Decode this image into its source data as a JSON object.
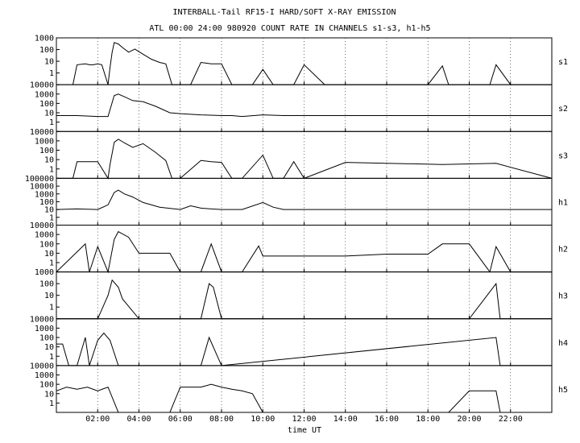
{
  "header": {
    "title": "INTERBALL-Tail RF15-I HARD/SOFT X-RAY EMISSION",
    "subtitle": "ATL 00:00 24:00 980920  COUNT RATE IN CHANNELS s1-s3, h1-h5"
  },
  "chart_data": {
    "type": "line",
    "title": "INTERBALL-Tail RF15-I HARD/SOFT X-RAY EMISSION",
    "subtitle": "ATL 00:00 24:00 980920  COUNT RATE IN CHANNELS s1-s3, h1-h5",
    "xlabel": "time UT",
    "x_unit": "hours UT",
    "xlim": [
      0,
      24
    ],
    "x_ticks": [
      2,
      4,
      6,
      8,
      10,
      12,
      14,
      16,
      18,
      20,
      22
    ],
    "x_tick_labels": [
      "02:00",
      "04:00",
      "06:00",
      "08:00",
      "10:00",
      "12:00",
      "14:00",
      "16:00",
      "18:00",
      "20:00",
      "22:00"
    ],
    "y_scale": "log",
    "grid": "vertical dotted at tick marks",
    "panels": [
      {
        "channel": "s1",
        "ylim": [
          0.1,
          1000
        ],
        "y_tick_labels": [
          "1000",
          "100",
          "10",
          "1"
        ],
        "x": [
          0.8,
          1.0,
          1.4,
          1.6,
          1.8,
          2.0,
          2.2,
          2.5,
          2.6,
          2.7,
          2.8,
          3.0,
          3.2,
          3.5,
          3.8,
          4.2,
          4.6,
          5.0,
          5.3,
          5.6,
          6.0,
          6.5,
          7.0,
          7.5,
          8.0,
          8.5,
          9.0,
          9.5,
          10.0,
          10.5,
          11.0,
          11.5,
          12.0,
          13.0,
          14.0,
          15.0,
          16.0,
          17.0,
          18.0,
          18.7,
          19.0,
          20.0,
          21.0,
          21.3,
          22.0,
          23.0,
          24.0
        ],
        "values": [
          0.1,
          5,
          6,
          5,
          5,
          6,
          5,
          0.1,
          3,
          60,
          400,
          300,
          150,
          60,
          110,
          40,
          15,
          8,
          6,
          0.1,
          0.1,
          0.1,
          8,
          6,
          6,
          0.1,
          0.1,
          0.1,
          2,
          0.1,
          0.1,
          0.1,
          5,
          0.1,
          0.1,
          0.1,
          0.1,
          0.1,
          0.1,
          4,
          0.1,
          0.1,
          0.1,
          5,
          0.1,
          0.1,
          0.1
        ]
      },
      {
        "channel": "s2",
        "ylim": [
          0.1,
          10000
        ],
        "y_tick_labels": [
          "10000",
          "1000",
          "100",
          "10",
          "1"
        ],
        "x": [
          0.0,
          1.0,
          2.0,
          2.5,
          2.8,
          3.0,
          3.3,
          3.7,
          4.2,
          4.8,
          5.5,
          6.0,
          7.0,
          8.0,
          8.5,
          9.0,
          10.0,
          11.0,
          12.0,
          14.0,
          16.0,
          18.0,
          20.0,
          22.0,
          24.0
        ],
        "values": [
          5,
          5,
          4,
          4,
          700,
          1000,
          500,
          200,
          150,
          50,
          10,
          8,
          6,
          5,
          5,
          4,
          6,
          5,
          5,
          5,
          5,
          5,
          5,
          5,
          5
        ]
      },
      {
        "channel": "s3",
        "ylim": [
          0.1,
          10000
        ],
        "y_tick_labels": [
          "10000",
          "1000",
          "100",
          "10",
          "1"
        ],
        "x": [
          0.0,
          0.8,
          1.0,
          1.5,
          2.0,
          2.5,
          2.6,
          2.8,
          3.0,
          3.3,
          3.7,
          4.2,
          4.8,
          5.3,
          5.6,
          6.0,
          7.0,
          7.5,
          8.0,
          8.5,
          9.0,
          10.0,
          10.5,
          11.0,
          11.5,
          12.0,
          14.0,
          18.7,
          21.3,
          24.0
        ],
        "values": [
          0.1,
          0.1,
          6,
          6,
          6,
          0.1,
          3,
          700,
          1500,
          600,
          200,
          500,
          60,
          8,
          0.1,
          0.1,
          8,
          6,
          5,
          0.1,
          0.1,
          30,
          0.1,
          0.1,
          6,
          0.1,
          5,
          3,
          4,
          0.1
        ]
      },
      {
        "channel": "h1",
        "ylim": [
          0.1,
          100000
        ],
        "y_tick_labels": [
          "100000",
          "10000",
          "1000",
          "100",
          "10",
          "1"
        ],
        "x": [
          0.0,
          1.0,
          2.0,
          2.5,
          2.8,
          3.0,
          3.3,
          3.7,
          4.2,
          5.0,
          6.0,
          6.5,
          7.0,
          7.5,
          8.0,
          9.0,
          10.0,
          10.5,
          11.0,
          12.0,
          14.0,
          16.0,
          18.0,
          20.0,
          22.0,
          24.0
        ],
        "values": [
          10,
          12,
          10,
          40,
          1500,
          3000,
          1000,
          400,
          80,
          20,
          10,
          30,
          15,
          12,
          10,
          10,
          80,
          20,
          10,
          10,
          10,
          10,
          10,
          10,
          10,
          10
        ]
      },
      {
        "channel": "h2",
        "ylim": [
          0.1,
          10000
        ],
        "y_tick_labels": [
          "10000",
          "1000",
          "100",
          "10",
          "1"
        ],
        "x": [
          0.0,
          1.4,
          1.6,
          2.0,
          2.5,
          2.8,
          3.0,
          3.5,
          4.0,
          5.5,
          6.0,
          7.0,
          7.5,
          8.0,
          9.0,
          9.8,
          10.0,
          12.0,
          14.0,
          16.0,
          18.0,
          18.7,
          19.0,
          20.0,
          21.0,
          21.3,
          22.0,
          24.0
        ],
        "values": [
          0.1,
          100,
          0.1,
          50,
          0.1,
          300,
          2000,
          500,
          10,
          10,
          0.1,
          0.1,
          100,
          0.1,
          0.1,
          60,
          5,
          5,
          5,
          8,
          8,
          100,
          100,
          100,
          0.1,
          50,
          0.1,
          0.1
        ]
      },
      {
        "channel": "h3",
        "ylim": [
          0.1,
          1000
        ],
        "y_tick_labels": [
          "1000",
          "100",
          "10",
          "1"
        ],
        "x": [
          0.0,
          2.0,
          2.5,
          2.7,
          3.0,
          3.2,
          4.0,
          7.0,
          7.4,
          7.6,
          8.0,
          10.0,
          20.0,
          21.3,
          21.5,
          24.0
        ],
        "values": [
          0.1,
          0.1,
          10,
          200,
          50,
          5,
          0.1,
          0.1,
          100,
          50,
          0.1,
          0.1,
          0.1,
          100,
          0.1,
          0.1
        ]
      },
      {
        "channel": "h4",
        "ylim": [
          0.1,
          10000
        ],
        "y_tick_labels": [
          "10000",
          "1000",
          "100",
          "10",
          "1"
        ],
        "x": [
          0.0,
          0.3,
          0.6,
          1.0,
          1.4,
          1.6,
          2.0,
          2.3,
          2.6,
          3.0,
          7.0,
          7.4,
          8.0,
          21.3,
          21.5,
          24.0
        ],
        "values": [
          20,
          20,
          0.1,
          0.1,
          100,
          0.1,
          50,
          300,
          50,
          0.1,
          0.1,
          100,
          0.1,
          100,
          0.1,
          0.1
        ]
      },
      {
        "channel": "h5",
        "ylim": [
          0.1,
          10000
        ],
        "y_tick_labels": [
          "10000",
          "1000",
          "100",
          "10",
          "1"
        ],
        "x": [
          0.0,
          0.5,
          1.0,
          1.5,
          2.0,
          2.5,
          3.0,
          5.5,
          6.0,
          7.0,
          7.5,
          8.0,
          8.5,
          9.0,
          9.5,
          10.0,
          19.0,
          20.0,
          21.3,
          21.5,
          24.0
        ],
        "values": [
          20,
          50,
          30,
          50,
          20,
          50,
          0.1,
          0.1,
          50,
          50,
          100,
          50,
          30,
          20,
          10,
          0.1,
          0.1,
          20,
          20,
          0.1,
          0.1
        ]
      }
    ]
  }
}
